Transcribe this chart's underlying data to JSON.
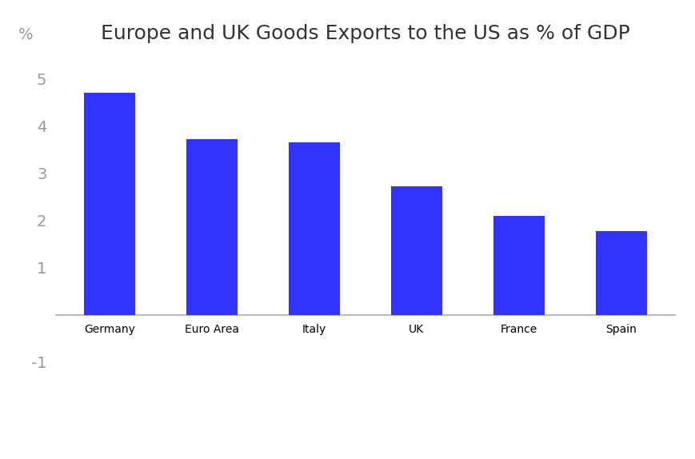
{
  "title": "Europe and UK Goods Exports to the US as % of GDP",
  "categories": [
    "Germany",
    "Euro Area",
    "Italy",
    "UK",
    "France",
    "Spain"
  ],
  "values": [
    4.7,
    3.72,
    3.65,
    2.72,
    2.1,
    1.78
  ],
  "bar_color": "#3333ff",
  "ylabel": "%",
  "ylim": [
    -1.3,
    5.5
  ],
  "yticks": [
    -1,
    1,
    2,
    3,
    4,
    5
  ],
  "background_color": "#ffffff",
  "title_fontsize": 18,
  "tick_label_fontsize": 14,
  "ylabel_fontsize": 14,
  "axis_line_color": "#bbbbbb",
  "label_color": "#999999",
  "title_color": "#333333"
}
